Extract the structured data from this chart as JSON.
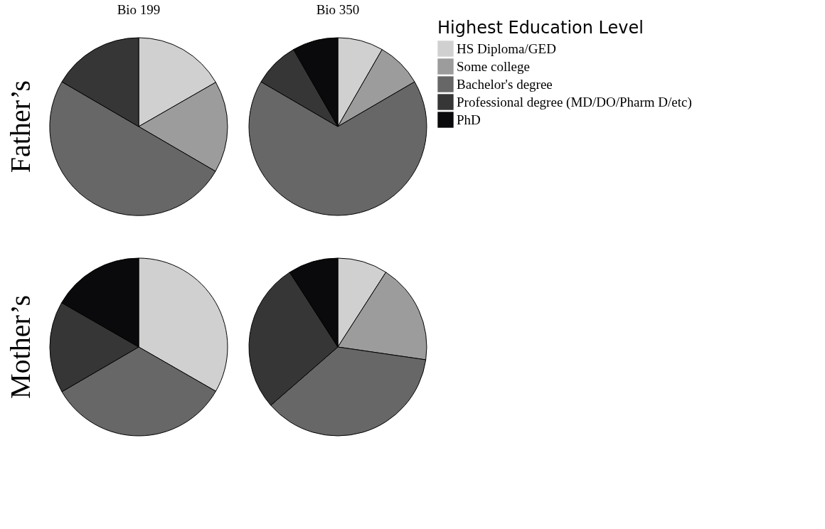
{
  "chart_data": [
    {
      "type": "pie",
      "title": "Bio 199",
      "ylabel": "Father’s",
      "categories": [
        "HS Diploma/GED",
        "Some college",
        "Bachelor's degree",
        "Professional degree (MD/DO/Pharm D/etc)",
        "PhD"
      ],
      "values": [
        16.7,
        16.7,
        50,
        16.6,
        0
      ],
      "colors": [
        "#d0d0d0",
        "#9c9c9c",
        "#676767",
        "#363636",
        "#0a0a0c"
      ],
      "legend": "right",
      "legend_title": "Highest Education Level"
    },
    {
      "type": "pie",
      "title": "Bio 350",
      "categories": [
        null,
        null,
        null,
        null,
        null
      ],
      "values": [
        8.3,
        8.3,
        66.8,
        8.3,
        8.3
      ],
      "colors": [
        "#d0d0d0",
        "#9c9c9c",
        "#676767",
        "#363636",
        "#0a0a0c"
      ]
    },
    {
      "type": "pie",
      "ylabel": "Mother’s",
      "categories": [
        null,
        null,
        null,
        null,
        null
      ],
      "values": [
        33.3,
        0,
        33.3,
        16.7,
        16.7
      ],
      "colors": [
        "#d0d0d0",
        "#9c9c9c",
        "#676767",
        "#363636",
        "#0a0a0c"
      ]
    },
    {
      "type": "pie",
      "categories": [
        null,
        null,
        null,
        null,
        null
      ],
      "values": [
        9.1,
        18.2,
        36.3,
        27.3,
        9.1
      ],
      "colors": [
        "#d0d0d0",
        "#9c9c9c",
        "#676767",
        "#363636",
        "#0a0a0c"
      ]
    }
  ]
}
